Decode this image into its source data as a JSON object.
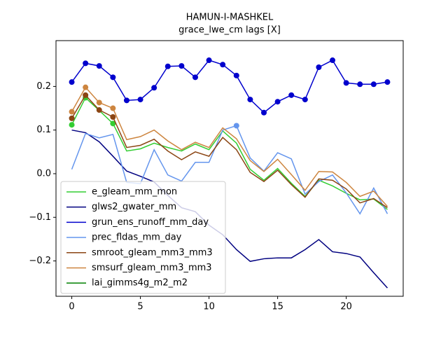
{
  "chart_data": {
    "type": "line",
    "title": "HAMUN-I-MASHKEL",
    "subtitle": "grace_lwe_cm lags [X]",
    "x": [
      0,
      1,
      2,
      3,
      4,
      5,
      6,
      7,
      8,
      9,
      10,
      11,
      12,
      13,
      14,
      15,
      16,
      17,
      18,
      19,
      20,
      21,
      22,
      23
    ],
    "series": [
      {
        "name": "e_gleam_mm_mon",
        "color": "#32cd32",
        "marker_indices": [
          0,
          1,
          3
        ],
        "values": [
          0.112,
          0.174,
          0.145,
          0.115,
          0.052,
          0.057,
          0.07,
          0.06,
          0.052,
          0.068,
          0.055,
          0.098,
          0.07,
          0.01,
          -0.015,
          0.012,
          -0.022,
          -0.052,
          -0.015,
          -0.028,
          -0.045,
          -0.06,
          -0.058,
          -0.082
        ]
      },
      {
        "name": "glws2_gwater_mm",
        "color": "#000080",
        "marker_indices": [],
        "values": [
          0.1,
          0.094,
          0.073,
          0.04,
          0.006,
          -0.006,
          -0.019,
          -0.05,
          -0.078,
          -0.087,
          -0.118,
          -0.14,
          -0.174,
          -0.201,
          -0.195,
          -0.193,
          -0.193,
          -0.174,
          -0.151,
          -0.179,
          -0.183,
          -0.191,
          -0.227,
          -0.262
        ]
      },
      {
        "name": "grun_ens_runoff_mm_day",
        "color": "#0000cd",
        "marker_indices": [
          0,
          1,
          2,
          3,
          4,
          5,
          6,
          7,
          8,
          9,
          10,
          11,
          12,
          13,
          14,
          15,
          16,
          17,
          18,
          19,
          20,
          21,
          22,
          23
        ],
        "values": [
          0.21,
          0.253,
          0.247,
          0.221,
          0.168,
          0.17,
          0.197,
          0.246,
          0.247,
          0.221,
          0.26,
          0.25,
          0.225,
          0.17,
          0.14,
          0.165,
          0.18,
          0.17,
          0.244,
          0.26,
          0.208,
          0.205,
          0.205,
          0.21
        ]
      },
      {
        "name": "prec_fldas_mm_day",
        "color": "#6495ed",
        "marker_indices": [
          12
        ],
        "values": [
          0.01,
          0.092,
          0.082,
          0.09,
          -0.02,
          -0.023,
          0.055,
          -0.003,
          -0.017,
          0.026,
          0.026,
          0.1,
          0.11,
          0.036,
          0.006,
          0.048,
          0.034,
          -0.047,
          -0.018,
          -0.003,
          -0.044,
          -0.092,
          -0.033,
          -0.092
        ]
      },
      {
        "name": "smroot_gleam_mm3_mm3",
        "color": "#8b4513",
        "marker_indices": [
          0,
          1,
          2,
          3
        ],
        "values": [
          0.127,
          0.18,
          0.146,
          0.13,
          0.06,
          0.065,
          0.079,
          0.052,
          0.032,
          0.05,
          0.04,
          0.083,
          0.055,
          0.003,
          -0.018,
          0.008,
          -0.025,
          -0.054,
          -0.012,
          -0.015,
          -0.035,
          -0.067,
          -0.057,
          -0.078
        ]
      },
      {
        "name": "smsurf_gleam_mm3_mm3",
        "color": "#cd853f",
        "marker_indices": [
          0,
          1,
          2,
          3
        ],
        "values": [
          0.142,
          0.198,
          0.163,
          0.15,
          0.078,
          0.085,
          0.1,
          0.075,
          0.055,
          0.072,
          0.06,
          0.105,
          0.08,
          0.03,
          0.005,
          0.033,
          -0.002,
          -0.038,
          0.005,
          0.004,
          -0.02,
          -0.052,
          -0.04,
          -0.075
        ]
      },
      {
        "name": "lai_gimms4g_m2_m2",
        "color": "#008000",
        "marker_indices": [],
        "values": [
          null,
          null,
          null,
          null,
          null,
          null,
          null,
          null,
          null,
          null,
          null,
          null,
          null,
          null,
          null,
          null,
          null,
          null,
          null,
          null,
          null,
          null,
          null,
          null
        ]
      }
    ],
    "xlim": [
      -1.15,
      24.15
    ],
    "xticks": [
      0,
      5,
      10,
      15,
      20
    ],
    "ylim": [
      -0.281,
      0.305
    ],
    "yticks": [
      {
        "value": -0.2,
        "label": "−0.2"
      },
      {
        "value": -0.1,
        "label": "−0.1"
      },
      {
        "value": 0,
        "label": "0.0"
      },
      0.1,
      0.2
    ],
    "legend": "lower left",
    "grid": false
  }
}
